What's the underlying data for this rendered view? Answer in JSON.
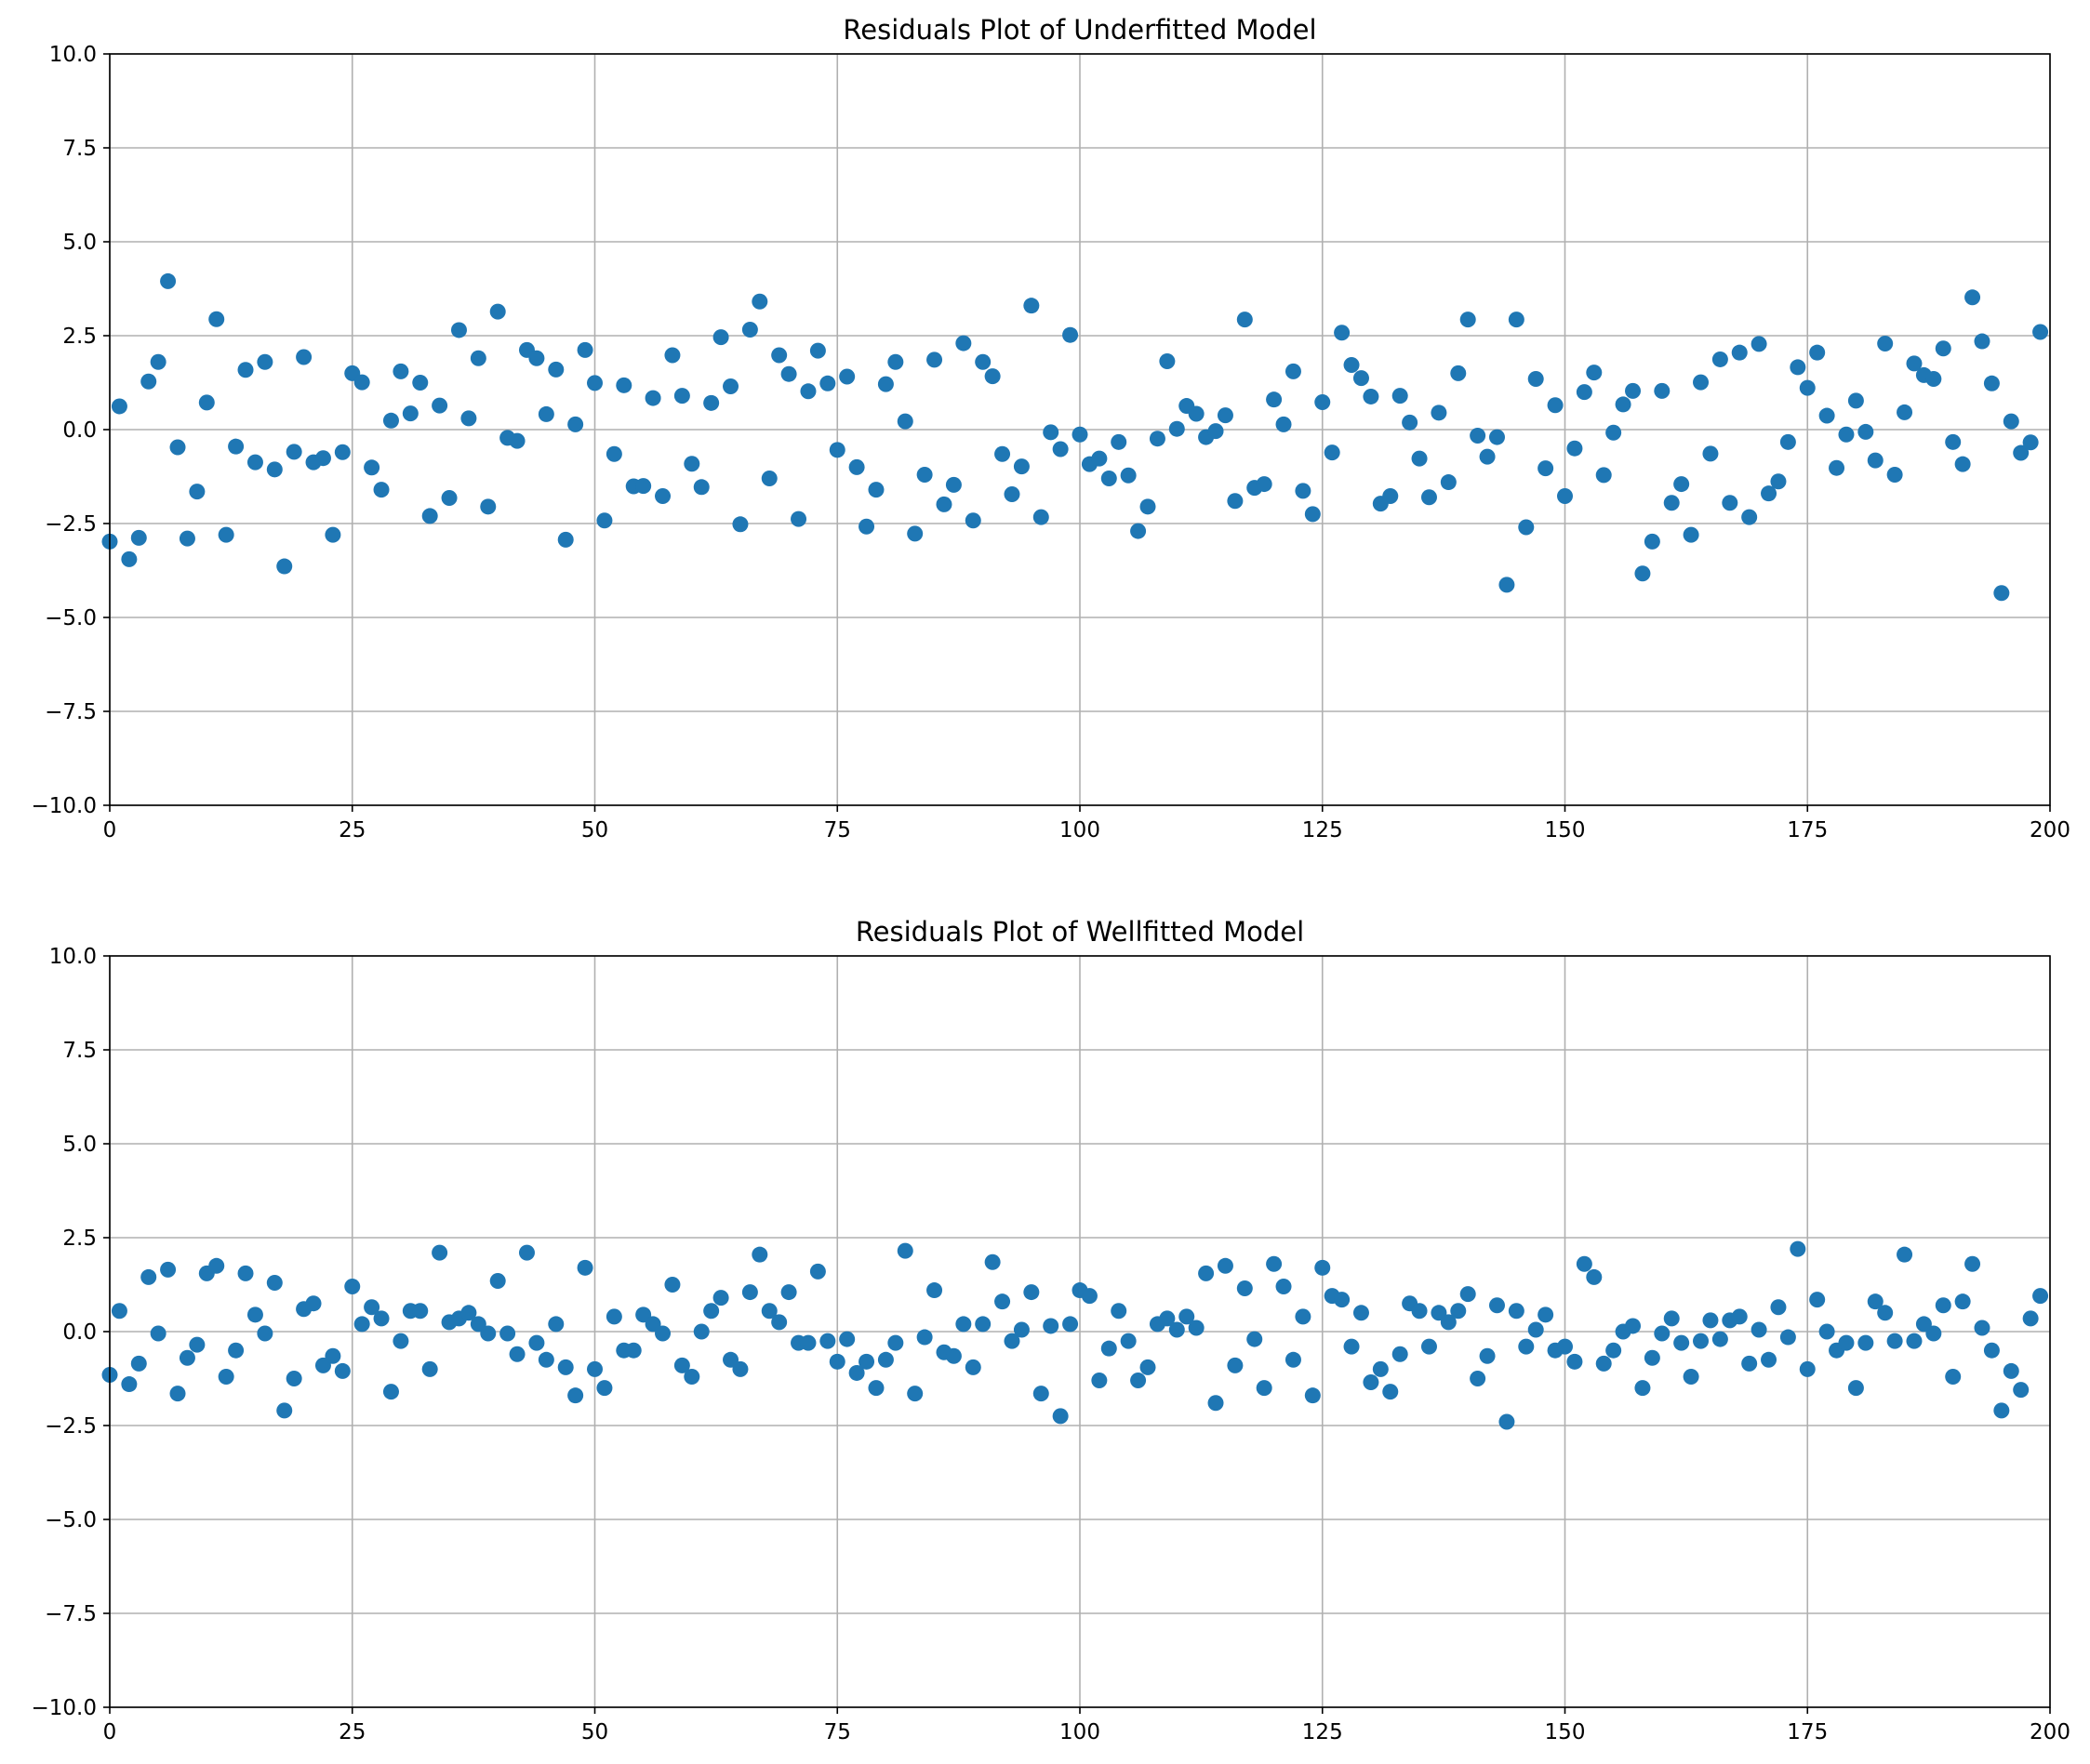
{
  "chart_data": [
    {
      "type": "scatter",
      "title": "Residuals Plot of Underfitted Model",
      "xlabel": "",
      "ylabel": "",
      "xlim": [
        0,
        200
      ],
      "ylim": [
        -10,
        10
      ],
      "xticks": [
        0,
        25,
        50,
        75,
        100,
        125,
        150,
        175,
        200
      ],
      "xtick_labels": [
        "0",
        "25",
        "50",
        "75",
        "100",
        "125",
        "150",
        "175",
        "200"
      ],
      "yticks": [
        -10,
        -7.5,
        -5,
        -2.5,
        0,
        2.5,
        5,
        7.5,
        10
      ],
      "ytick_labels": [
        "−10.0",
        "−7.5",
        "−5.0",
        "−2.5",
        "0.0",
        "2.5",
        "5.0",
        "7.5",
        "10.0"
      ],
      "grid": true,
      "marker_color": "#1f77b4",
      "series": [
        {
          "x": [
            0,
            1,
            2,
            3,
            4,
            5,
            6,
            7,
            8,
            9,
            10,
            11,
            12,
            13,
            14,
            15,
            16,
            17,
            18,
            19,
            20,
            21,
            22,
            23,
            24,
            25,
            26,
            27,
            28,
            29,
            30,
            31,
            32,
            33,
            34,
            35,
            36,
            37,
            38,
            39,
            40,
            41,
            42,
            43,
            44,
            45,
            46,
            47,
            48,
            49,
            50,
            51,
            52,
            53,
            54,
            55,
            56,
            57,
            58,
            59,
            60,
            61,
            62,
            63,
            64,
            65,
            66,
            67,
            68,
            69,
            70,
            71,
            72,
            73,
            74,
            75,
            76,
            77,
            78,
            79,
            80,
            81,
            82,
            83,
            84,
            85,
            86,
            87,
            88,
            89,
            90,
            91,
            92,
            93,
            94,
            95,
            96,
            97,
            98,
            99,
            100,
            101,
            102,
            103,
            104,
            105,
            106,
            107,
            108,
            109,
            110,
            111,
            112,
            113,
            114,
            115,
            116,
            117,
            118,
            119,
            120,
            121,
            122,
            123,
            124,
            125,
            126,
            127,
            128,
            129,
            130,
            131,
            132,
            133,
            134,
            135,
            136,
            137,
            138,
            139,
            140,
            141,
            142,
            143,
            144,
            145,
            146,
            147,
            148,
            149,
            150,
            151,
            152,
            153,
            154,
            155,
            156,
            157,
            158,
            159,
            160,
            161,
            162,
            163,
            164,
            165,
            166,
            167,
            168,
            169,
            170,
            171,
            172,
            173,
            174,
            175,
            176,
            177,
            178,
            179,
            180,
            181,
            182,
            183,
            184,
            185,
            186,
            187,
            188,
            189,
            190,
            191,
            192,
            193,
            194,
            195,
            196,
            197,
            198,
            199
          ],
          "y": [
            -2.98,
            0.62,
            -3.45,
            -2.88,
            1.28,
            1.8,
            3.95,
            -0.47,
            -2.9,
            -1.65,
            0.72,
            2.94,
            -2.8,
            -0.45,
            1.59,
            -0.87,
            1.8,
            -1.06,
            -3.64,
            -0.59,
            1.93,
            -0.87,
            -0.76,
            -2.8,
            -0.6,
            1.5,
            1.26,
            -1.01,
            -1.6,
            0.24,
            1.55,
            0.43,
            1.25,
            -2.3,
            0.64,
            -1.82,
            2.65,
            0.3,
            1.9,
            -2.05,
            3.14,
            -0.22,
            -0.3,
            2.12,
            1.9,
            0.41,
            1.6,
            -2.93,
            0.14,
            2.12,
            1.24,
            -2.42,
            -0.65,
            1.18,
            -1.51,
            -1.5,
            0.84,
            -1.77,
            1.98,
            0.9,
            -0.91,
            -1.53,
            0.71,
            2.46,
            1.15,
            -2.52,
            2.66,
            3.41,
            -1.3,
            1.98,
            1.48,
            -2.38,
            1.02,
            2.1,
            1.23,
            -0.54,
            1.41,
            -1.0,
            -2.58,
            -1.6,
            1.21,
            1.8,
            0.22,
            -2.77,
            -1.2,
            1.86,
            -1.99,
            -1.47,
            2.3,
            -2.42,
            1.8,
            1.42,
            -0.65,
            -1.72,
            -0.98,
            3.3,
            -2.33,
            -0.07,
            -0.52,
            2.52,
            -0.13,
            -0.92,
            -0.77,
            -1.3,
            -0.33,
            -1.22,
            -2.7,
            -2.05,
            -0.24,
            1.82,
            0.02,
            0.63,
            0.42,
            -0.2,
            -0.04,
            0.38,
            -1.9,
            2.93,
            -1.55,
            -1.45,
            0.8,
            0.14,
            1.55,
            -1.63,
            -2.25,
            0.73,
            -0.61,
            2.58,
            1.72,
            1.37,
            0.88,
            -1.97,
            -1.77,
            0.9,
            0.19,
            -0.77,
            -1.8,
            0.45,
            -1.4,
            1.5,
            2.93,
            -0.16,
            -0.72,
            -0.2,
            -4.13,
            2.93,
            -2.6,
            1.35,
            -1.03,
            0.65,
            -1.77,
            -0.5,
            1.0,
            1.52,
            -1.21,
            -0.08,
            0.67,
            1.03,
            -3.83,
            -2.98,
            1.03,
            -1.95,
            -1.45,
            -2.8,
            1.26,
            -0.64,
            1.87,
            -1.95,
            2.05,
            -2.33,
            2.28,
            -1.7,
            -1.38,
            -0.33,
            1.66,
            1.11,
            2.05,
            0.37,
            -1.02,
            -0.13,
            0.77,
            -0.06,
            -0.82,
            2.29,
            -1.2,
            0.46,
            1.76,
            1.45,
            1.35,
            2.16,
            -0.33,
            -0.92,
            3.52,
            2.35,
            1.23,
            -4.35,
            0.22,
            -0.62,
            -0.34,
            2.6
          ]
        }
      ]
    },
    {
      "type": "scatter",
      "title": "Residuals Plot of Wellfitted Model",
      "xlabel": "",
      "ylabel": "",
      "xlim": [
        0,
        200
      ],
      "ylim": [
        -10,
        10
      ],
      "xticks": [
        0,
        25,
        50,
        75,
        100,
        125,
        150,
        175,
        200
      ],
      "xtick_labels": [
        "0",
        "25",
        "50",
        "75",
        "100",
        "125",
        "150",
        "175",
        "200"
      ],
      "yticks": [
        -10,
        -7.5,
        -5,
        -2.5,
        0,
        2.5,
        5,
        7.5,
        10
      ],
      "ytick_labels": [
        "−10.0",
        "−7.5",
        "−5.0",
        "−2.5",
        "0.0",
        "2.5",
        "5.0",
        "7.5",
        "10.0"
      ],
      "grid": true,
      "marker_color": "#1f77b4",
      "series": [
        {
          "x": [
            0,
            1,
            2,
            3,
            4,
            5,
            6,
            7,
            8,
            9,
            10,
            11,
            12,
            13,
            14,
            15,
            16,
            17,
            18,
            19,
            20,
            21,
            22,
            23,
            24,
            25,
            26,
            27,
            28,
            29,
            30,
            31,
            32,
            33,
            34,
            35,
            36,
            37,
            38,
            39,
            40,
            41,
            42,
            43,
            44,
            45,
            46,
            47,
            48,
            49,
            50,
            51,
            52,
            53,
            54,
            55,
            56,
            57,
            58,
            59,
            60,
            61,
            62,
            63,
            64,
            65,
            66,
            67,
            68,
            69,
            70,
            71,
            72,
            73,
            74,
            75,
            76,
            77,
            78,
            79,
            80,
            81,
            82,
            83,
            84,
            85,
            86,
            87,
            88,
            89,
            90,
            91,
            92,
            93,
            94,
            95,
            96,
            97,
            98,
            99,
            100,
            101,
            102,
            103,
            104,
            105,
            106,
            107,
            108,
            109,
            110,
            111,
            112,
            113,
            114,
            115,
            116,
            117,
            118,
            119,
            120,
            121,
            122,
            123,
            124,
            125,
            126,
            127,
            128,
            129,
            130,
            131,
            132,
            133,
            134,
            135,
            136,
            137,
            138,
            139,
            140,
            141,
            142,
            143,
            144,
            145,
            146,
            147,
            148,
            149,
            150,
            151,
            152,
            153,
            154,
            155,
            156,
            157,
            158,
            159,
            160,
            161,
            162,
            163,
            164,
            165,
            166,
            167,
            168,
            169,
            170,
            171,
            172,
            173,
            174,
            175,
            176,
            177,
            178,
            179,
            180,
            181,
            182,
            183,
            184,
            185,
            186,
            187,
            188,
            189,
            190,
            191,
            192,
            193,
            194,
            195,
            196,
            197,
            198,
            199
          ],
          "y": [
            -1.15,
            0.55,
            -1.4,
            -0.85,
            1.45,
            -0.05,
            1.65,
            -1.65,
            -0.7,
            -0.35,
            1.55,
            1.75,
            -1.2,
            -0.5,
            1.55,
            0.45,
            -0.05,
            1.3,
            -2.1,
            -1.25,
            0.6,
            0.75,
            -0.9,
            -0.65,
            -1.05,
            1.2,
            0.2,
            0.65,
            0.35,
            -1.6,
            -0.25,
            0.55,
            0.55,
            -1.0,
            2.1,
            0.25,
            0.35,
            0.5,
            0.2,
            -0.05,
            1.35,
            -0.05,
            -0.6,
            2.1,
            -0.3,
            -0.75,
            0.2,
            -0.95,
            -1.7,
            1.7,
            -1.0,
            -1.5,
            0.4,
            -0.5,
            -0.5,
            0.45,
            0.2,
            -0.05,
            1.25,
            -0.9,
            -1.2,
            0.0,
            0.55,
            0.9,
            -0.75,
            -1.0,
            1.05,
            2.05,
            0.55,
            0.25,
            1.05,
            -0.3,
            -0.3,
            1.6,
            -0.25,
            -0.8,
            -0.2,
            -1.1,
            -0.8,
            -1.5,
            -0.75,
            -0.3,
            2.15,
            -1.65,
            -0.15,
            1.1,
            -0.55,
            -0.65,
            0.2,
            -0.95,
            0.2,
            1.85,
            0.8,
            -0.25,
            0.05,
            1.05,
            -1.65,
            0.15,
            -2.25,
            0.2,
            1.1,
            0.95,
            -1.3,
            -0.45,
            0.55,
            -0.25,
            -1.3,
            -0.95,
            0.2,
            0.35,
            0.05,
            0.4,
            0.1,
            1.55,
            -1.9,
            1.75,
            -0.9,
            1.15,
            -0.2,
            -1.5,
            1.8,
            1.2,
            -0.75,
            0.4,
            -1.7,
            1.7,
            0.95,
            0.85,
            -0.4,
            0.5,
            -1.35,
            -1.0,
            -1.6,
            -0.6,
            0.75,
            0.55,
            -0.4,
            0.5,
            0.25,
            0.55,
            1.0,
            -1.25,
            -0.65,
            0.7,
            -2.4,
            0.55,
            -0.4,
            0.05,
            0.45,
            -0.5,
            -0.4,
            -0.8,
            1.8,
            1.45,
            -0.85,
            -0.5,
            0.0,
            0.15,
            -1.5,
            -0.7,
            -0.05,
            0.35,
            -0.3,
            -1.2,
            -0.25,
            0.3,
            -0.2,
            0.3,
            0.4,
            -0.85,
            0.05,
            -0.75,
            0.65,
            -0.15,
            2.2,
            -1.0,
            0.85,
            0.0,
            -0.5,
            -0.3,
            -1.5,
            -0.3,
            0.8,
            0.5,
            -0.25,
            2.05,
            -0.25,
            0.2,
            -0.05,
            0.7,
            -1.2,
            0.8,
            1.8,
            0.1,
            -0.5,
            -2.1,
            -1.05,
            -1.55,
            0.35,
            0.95
          ]
        }
      ]
    }
  ]
}
